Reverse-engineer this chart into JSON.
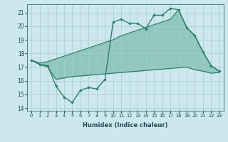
{
  "xlabel": "Humidex (Indice chaleur)",
  "x": [
    0,
    1,
    2,
    3,
    4,
    5,
    6,
    7,
    8,
    9,
    10,
    11,
    12,
    13,
    14,
    15,
    16,
    17,
    18,
    19,
    20,
    21,
    22,
    23
  ],
  "line_main": [
    17.5,
    17.2,
    17.1,
    15.6,
    14.8,
    14.4,
    15.3,
    15.5,
    15.4,
    16.1,
    20.3,
    20.5,
    20.2,
    20.2,
    19.8,
    20.8,
    20.8,
    21.3,
    21.2,
    19.9,
    19.3,
    18.1,
    17.1,
    16.7
  ],
  "line_upper": [
    17.5,
    17.3,
    17.4,
    17.6,
    17.8,
    18.0,
    18.2,
    18.4,
    18.6,
    18.8,
    19.0,
    19.3,
    19.5,
    19.7,
    19.9,
    20.1,
    20.3,
    20.5,
    21.2,
    19.9,
    19.3,
    18.1,
    17.1,
    16.7
  ],
  "line_lower": [
    17.5,
    17.2,
    17.0,
    16.1,
    16.2,
    16.3,
    16.35,
    16.4,
    16.45,
    16.5,
    16.55,
    16.6,
    16.65,
    16.7,
    16.75,
    16.8,
    16.85,
    16.9,
    16.95,
    17.0,
    16.8,
    16.7,
    16.55,
    16.6
  ],
  "ylim": [
    13.8,
    21.6
  ],
  "yticks": [
    14,
    15,
    16,
    17,
    18,
    19,
    20,
    21
  ],
  "color_line": "#2d7d6e",
  "color_fill": "#4a9d8e",
  "bg_color": "#cce8ec",
  "grid_color": "#aacccc",
  "fill_alpha": 0.45
}
